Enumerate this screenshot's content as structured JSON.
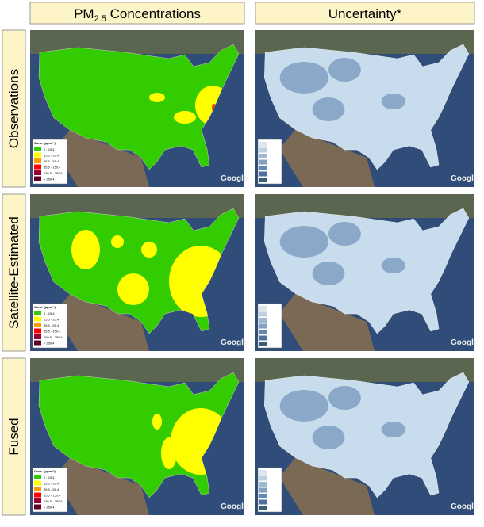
{
  "headers": {
    "pm": {
      "base": "PM",
      "sub": "2.5",
      "rest": " Concentrations"
    },
    "uncertainty": "Uncertainty*"
  },
  "rows": [
    "Observations",
    "Satellite-Estimated",
    "Fused"
  ],
  "legend": {
    "title": "Conc. (μgm⁻³)",
    "items": [
      {
        "label": "0 - 15.4",
        "color": "#33cc00"
      },
      {
        "label": "15.5 - 35.4",
        "color": "#ffff00"
      },
      {
        "label": "35.5 - 55.4",
        "color": "#ff9900"
      },
      {
        "label": "55.5 - 150.4",
        "color": "#ff0000"
      },
      {
        "label": "150.5 - 250.4",
        "color": "#990033"
      },
      {
        "label": "> 250.4",
        "color": "#660022"
      }
    ]
  },
  "watermark": "Google"
}
